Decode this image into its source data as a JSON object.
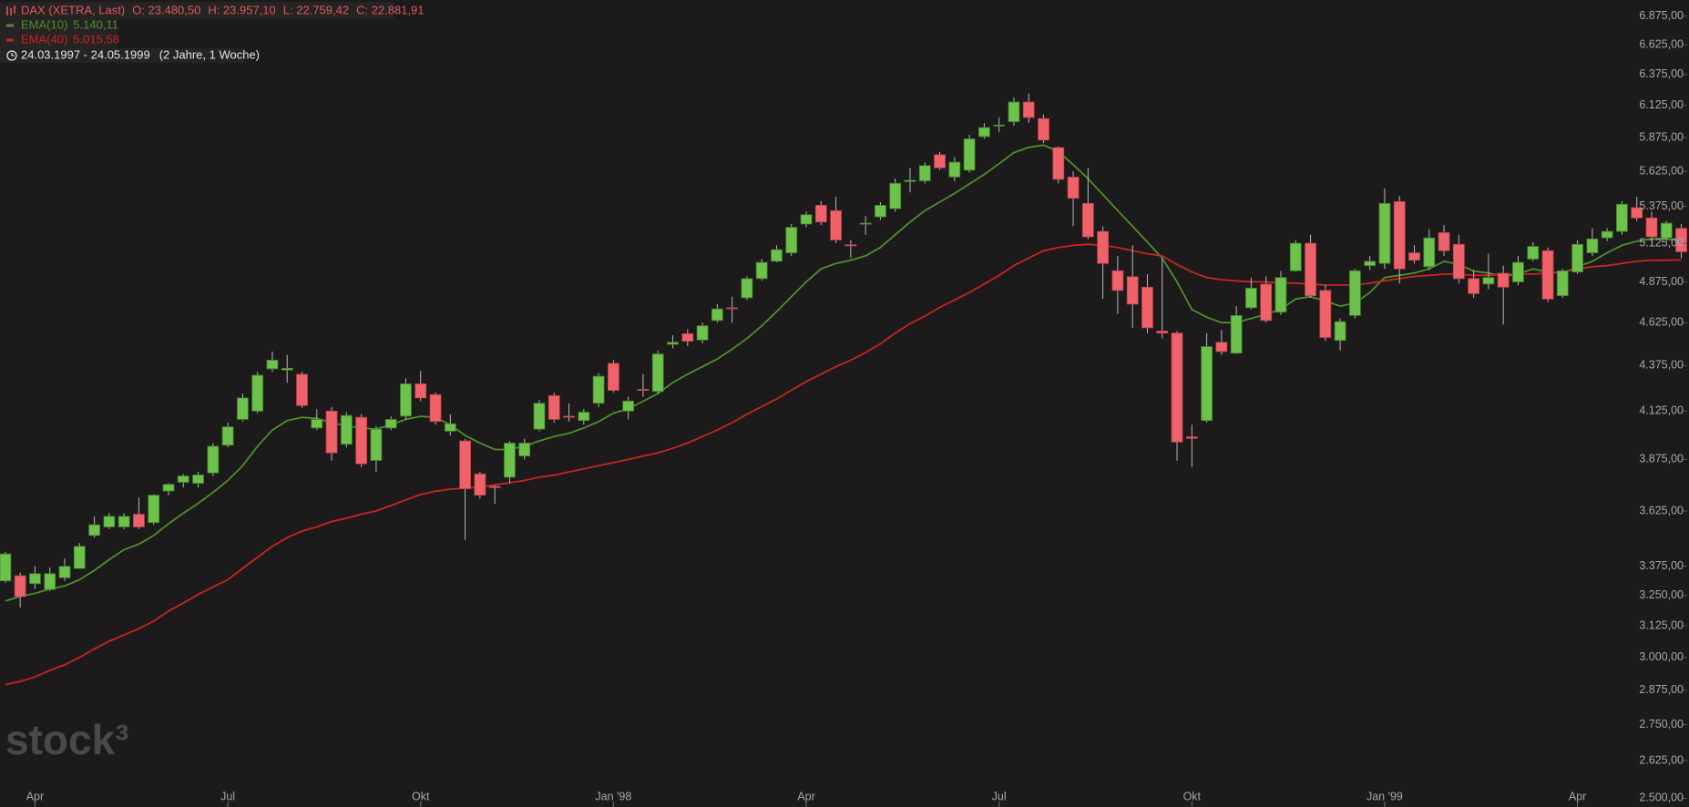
{
  "chart_data": {
    "type": "candlestick",
    "title": "DAX (XETRA, Last)",
    "ohlc_labels": [
      "O: 23.480,50",
      "H: 23.957,10",
      "L: 22.759,42",
      "C: 22.881,91"
    ],
    "date_range": "24.03.1997 - 24.05.1999",
    "period": "(2 Jahre, 1 Woche)",
    "watermark": "stock³",
    "categories": [
      null,
      null,
      "Apr",
      null,
      null,
      null,
      null,
      null,
      null,
      null,
      null,
      null,
      null,
      null,
      null,
      "Jul",
      null,
      null,
      null,
      null,
      null,
      null,
      null,
      null,
      null,
      null,
      null,
      null,
      "Okt",
      null,
      null,
      null,
      null,
      null,
      null,
      null,
      null,
      null,
      null,
      null,
      null,
      "Jan '98",
      null,
      null,
      null,
      null,
      null,
      null,
      null,
      null,
      null,
      null,
      null,
      null,
      "Apr",
      null,
      null,
      null,
      null,
      null,
      null,
      null,
      null,
      null,
      null,
      null,
      null,
      "Jul",
      null,
      null,
      null,
      null,
      null,
      null,
      null,
      null,
      null,
      null,
      null,
      null,
      "Okt",
      null,
      null,
      null,
      null,
      null,
      null,
      null,
      null,
      null,
      null,
      null,
      null,
      "Jan '99",
      null,
      null,
      null,
      null,
      null,
      null,
      null,
      null,
      null,
      null,
      null,
      null,
      "Apr",
      null,
      null,
      null,
      null,
      null,
      null,
      null
    ],
    "open": [
      3312,
      3334,
      3300,
      3275,
      3325,
      3365,
      3512,
      3551,
      3551,
      3610,
      3571,
      3720,
      3762,
      3757,
      3808,
      3947,
      4081,
      4125,
      4357,
      4350,
      4326,
      4036,
      4125,
      3952,
      4092,
      3870,
      4036,
      4098,
      4273,
      4214,
      4019,
      3969,
      3803,
      3742,
      3787,
      3892,
      4030,
      4208,
      4098,
      4075,
      4167,
      4388,
      4125,
      4243,
      4231,
      4497,
      4559,
      4522,
      4638,
      4715,
      4776,
      4896,
      5007,
      5062,
      5254,
      5383,
      5346,
      5115,
      5254,
      5303,
      5360,
      5550,
      5556,
      5747,
      5584,
      5633,
      5883,
      5965,
      5997,
      6152,
      6022,
      5800,
      5583,
      5396,
      5204,
      4946,
      4908,
      4842,
      4575,
      4563,
      3990,
      4075,
      4509,
      4446,
      4715,
      4861,
      4688,
      4946,
      5125,
      4822,
      4520,
      4668,
      4979,
      4993,
      5409,
      5062,
      4972,
      5196,
      5118,
      4896,
      4862,
      4930,
      4875,
      5021,
      5076,
      4789,
      4938,
      5062,
      5161,
      5204,
      5367,
      5296,
      5161,
      5225
    ],
    "high": [
      3439,
      3348,
      3375,
      3370,
      3409,
      3478,
      3600,
      3615,
      3615,
      3689,
      3704,
      3758,
      3802,
      3814,
      3958,
      4064,
      4220,
      4339,
      4455,
      4436,
      4339,
      4136,
      4147,
      4119,
      4108,
      4047,
      4097,
      4303,
      4345,
      4226,
      4108,
      3980,
      3814,
      3747,
      3969,
      3980,
      4184,
      4226,
      4167,
      4136,
      4333,
      4406,
      4202,
      4327,
      4461,
      4550,
      4586,
      4625,
      4737,
      4783,
      4910,
      5021,
      5111,
      5254,
      5339,
      5412,
      5442,
      5146,
      5311,
      5405,
      5572,
      5650,
      5689,
      5768,
      5728,
      5897,
      5986,
      6030,
      6190,
      6220,
      6053,
      5810,
      5625,
      5648,
      5239,
      5042,
      5111,
      4924,
      5028,
      4575,
      4053,
      4563,
      4581,
      4724,
      4903,
      4910,
      4945,
      5146,
      5182,
      4854,
      4650,
      4958,
      5042,
      5502,
      5450,
      5111,
      5218,
      5247,
      5182,
      4951,
      5056,
      4979,
      5042,
      5132,
      5097,
      4958,
      5146,
      5225,
      5225,
      5412,
      5442,
      5339,
      5275,
      5254
    ],
    "low": [
      3304,
      3200,
      3278,
      3268,
      3312,
      3365,
      3502,
      3541,
      3541,
      3541,
      3561,
      3699,
      3737,
      3737,
      3792,
      3936,
      4070,
      4114,
      4339,
      4279,
      4142,
      4025,
      3869,
      3936,
      3836,
      3814,
      4025,
      4081,
      4178,
      4053,
      3997,
      3492,
      3684,
      3659,
      3758,
      3875,
      4019,
      4064,
      4070,
      4053,
      4147,
      4226,
      4081,
      4202,
      4220,
      4474,
      4487,
      4503,
      4625,
      4625,
      4763,
      4882,
      5000,
      5041,
      5232,
      5247,
      5125,
      5028,
      5182,
      5282,
      5339,
      5474,
      5537,
      5633,
      5553,
      5616,
      5866,
      5917,
      5966,
      5989,
      5834,
      5538,
      5239,
      5153,
      4770,
      4678,
      4594,
      4562,
      4531,
      3869,
      3836,
      4064,
      4436,
      4442,
      4704,
      4625,
      4672,
      4938,
      4776,
      4519,
      4461,
      4650,
      4951,
      4958,
      4865,
      4993,
      4951,
      5041,
      4865,
      4776,
      4829,
      4613,
      4854,
      5007,
      4750,
      4776,
      4924,
      5042,
      5139,
      5182,
      5275,
      5139,
      5139,
      5028
    ],
    "close": [
      3429,
      3245,
      3343,
      3343,
      3375,
      3463,
      3561,
      3600,
      3600,
      3551,
      3700,
      3752,
      3793,
      3798,
      3942,
      4042,
      4196,
      4321,
      4406,
      4360,
      4155,
      4081,
      3908,
      4102,
      3853,
      4030,
      4081,
      4273,
      4196,
      4070,
      4058,
      3731,
      3700,
      3736,
      3958,
      3958,
      4167,
      4081,
      4092,
      4119,
      4315,
      4237,
      4179,
      4237,
      4441,
      4509,
      4515,
      4606,
      4708,
      4711,
      4896,
      5000,
      5083,
      5232,
      5318,
      5268,
      5147,
      5110,
      5260,
      5383,
      5538,
      5560,
      5667,
      5650,
      5692,
      5866,
      5952,
      5972,
      6152,
      6030,
      5857,
      5567,
      5432,
      5168,
      4993,
      4822,
      4737,
      4594,
      4563,
      3963,
      3982,
      4484,
      4455,
      4668,
      4836,
      4638,
      4903,
      5125,
      4789,
      4537,
      4631,
      4946,
      5007,
      5396,
      4958,
      5014,
      5161,
      5076,
      4896,
      4802,
      4903,
      4842,
      5000,
      5104,
      4768,
      4946,
      5118,
      5154,
      5204,
      5390,
      5296,
      5168,
      5260,
      5069
    ],
    "up_color": "#6cc24a",
    "down_color": "#f0626a",
    "series": [
      {
        "name": "EMA(10)",
        "value_label": "5.140,11",
        "color": "#4f8f2d",
        "values": [
          3227,
          3245,
          3259,
          3277,
          3290,
          3317,
          3357,
          3404,
          3448,
          3473,
          3512,
          3566,
          3615,
          3661,
          3713,
          3771,
          3844,
          3942,
          4025,
          4075,
          4092,
          4086,
          4064,
          4047,
          4036,
          4030,
          4053,
          4081,
          4097,
          4092,
          4053,
          3997,
          3958,
          3925,
          3925,
          3942,
          3969,
          3992,
          4008,
          4036,
          4069,
          4114,
          4137,
          4178,
          4220,
          4280,
          4327,
          4369,
          4412,
          4469,
          4531,
          4606,
          4691,
          4783,
          4875,
          4958,
          4993,
          5014,
          5042,
          5097,
          5182,
          5268,
          5346,
          5405,
          5466,
          5534,
          5602,
          5681,
          5762,
          5802,
          5819,
          5770,
          5673,
          5572,
          5458,
          5346,
          5239,
          5132,
          5028,
          4875,
          4704,
          4658,
          4625,
          4625,
          4650,
          4675,
          4706,
          4769,
          4783,
          4756,
          4725,
          4743,
          4809,
          4903,
          4917,
          4931,
          4958,
          5007,
          4986,
          4944,
          4931,
          4910,
          4924,
          4958,
          4938,
          4931,
          4972,
          5007,
          5062,
          5111,
          5139,
          5154,
          5154,
          5140.11
        ]
      },
      {
        "name": "EMA(40)",
        "value_label": "5.015,58",
        "color": "#c8261f",
        "values": [
          2896,
          2908,
          2925,
          2950,
          2971,
          3000,
          3033,
          3063,
          3088,
          3113,
          3144,
          3185,
          3218,
          3254,
          3286,
          3317,
          3366,
          3414,
          3463,
          3502,
          3532,
          3551,
          3576,
          3591,
          3610,
          3625,
          3651,
          3677,
          3703,
          3719,
          3729,
          3734,
          3740,
          3750,
          3760,
          3771,
          3787,
          3797,
          3813,
          3828,
          3844,
          3859,
          3875,
          3892,
          3908,
          3931,
          3958,
          3992,
          4025,
          4064,
          4108,
          4149,
          4190,
          4238,
          4286,
          4327,
          4369,
          4406,
          4450,
          4500,
          4563,
          4619,
          4664,
          4717,
          4763,
          4809,
          4862,
          4917,
          4979,
          5028,
          5076,
          5097,
          5111,
          5118,
          5111,
          5097,
          5076,
          5056,
          5042,
          4986,
          4938,
          4903,
          4889,
          4882,
          4875,
          4875,
          4868,
          4868,
          4862,
          4855,
          4855,
          4855,
          4868,
          4882,
          4896,
          4910,
          4917,
          4924,
          4924,
          4917,
          4917,
          4924,
          4924,
          4924,
          4931,
          4938,
          4958,
          4972,
          4979,
          4993,
          5007,
          5014,
          5014,
          5015.58
        ]
      }
    ],
    "ylim": [
      2472,
      7020
    ],
    "yscale": "log",
    "yticks": [
      {
        "value": 6875,
        "label": "6.875,00"
      },
      {
        "value": 6625,
        "label": "6.625,00"
      },
      {
        "value": 6375,
        "label": "6.375,00"
      },
      {
        "value": 6125,
        "label": "6.125,00"
      },
      {
        "value": 5875,
        "label": "5.875,00"
      },
      {
        "value": 5625,
        "label": "5.625,00"
      },
      {
        "value": 5375,
        "label": "5.375,00"
      },
      {
        "value": 5125,
        "label": "5.125,00"
      },
      {
        "value": 4875,
        "label": "4.875,00"
      },
      {
        "value": 4625,
        "label": "4.625,00"
      },
      {
        "value": 4375,
        "label": "4.375,00"
      },
      {
        "value": 4125,
        "label": "4.125,00"
      },
      {
        "value": 3875,
        "label": "3.875,00"
      },
      {
        "value": 3625,
        "label": "3.625,00"
      },
      {
        "value": 3375,
        "label": "3.375,00"
      },
      {
        "value": 3250,
        "label": "3.250,00"
      },
      {
        "value": 3125,
        "label": "3.125,00"
      },
      {
        "value": 3000,
        "label": "3.000,00"
      },
      {
        "value": 2875,
        "label": "2.875,00"
      },
      {
        "value": 2750,
        "label": "2.750,00"
      },
      {
        "value": 2625,
        "label": "2.625,00"
      },
      {
        "value": 2500,
        "label": "2.500,00"
      }
    ]
  }
}
